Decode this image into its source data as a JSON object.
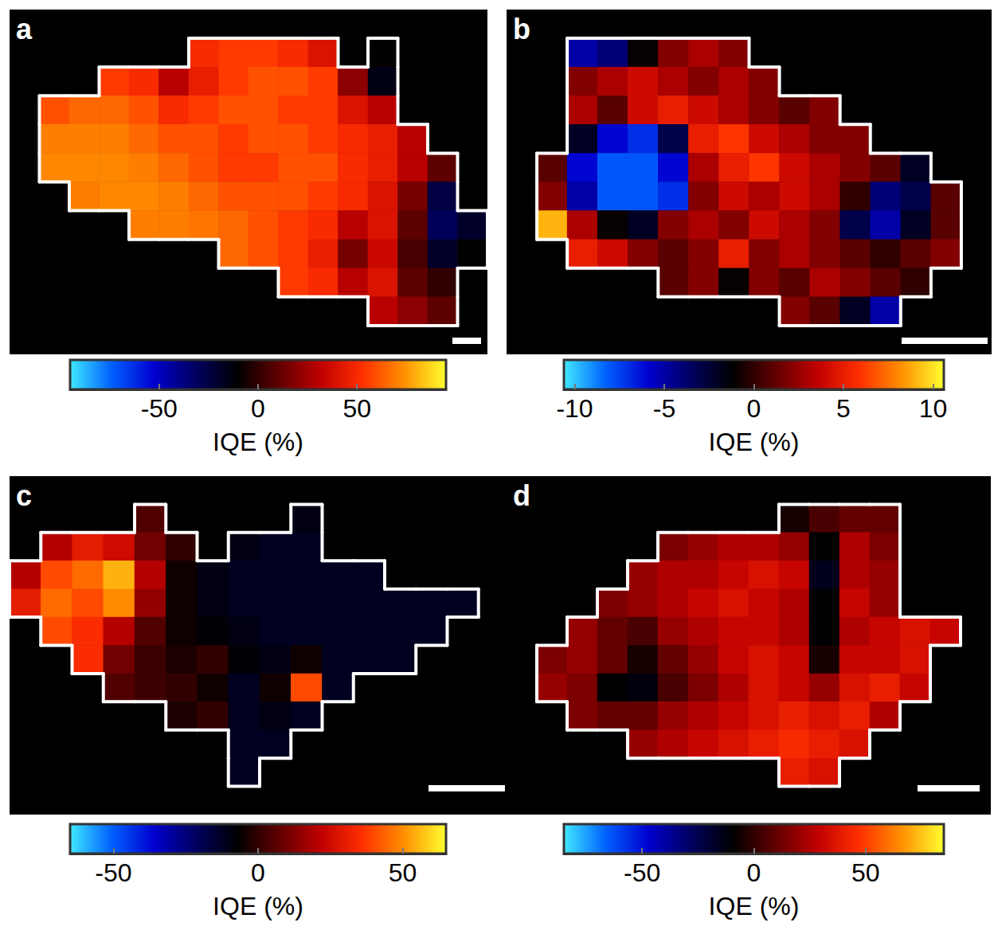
{
  "chart_data": [
    {
      "type": "heatmap",
      "title": "a",
      "tick_labels": false,
      "colorbar": {
        "label": "IQE (%)",
        "range": [
          -95,
          95
        ],
        "ticks": [
          -50,
          0,
          50
        ]
      },
      "values": [
        [
          null,
          null,
          null,
          null,
          null,
          null,
          null,
          null,
          null,
          null,
          null,
          null,
          null,
          null,
          null,
          null
        ],
        [
          null,
          null,
          null,
          null,
          null,
          null,
          50,
          55,
          55,
          50,
          40,
          null,
          -10,
          null,
          null,
          null
        ],
        [
          null,
          null,
          null,
          55,
          50,
          30,
          45,
          55,
          60,
          60,
          55,
          20,
          -15,
          null,
          null,
          null
        ],
        [
          null,
          60,
          65,
          65,
          60,
          50,
          55,
          60,
          60,
          55,
          55,
          40,
          30,
          null,
          null,
          null
        ],
        [
          null,
          70,
          70,
          70,
          65,
          60,
          60,
          55,
          60,
          60,
          55,
          50,
          45,
          30,
          null,
          null
        ],
        [
          null,
          72,
          72,
          72,
          70,
          65,
          60,
          55,
          55,
          60,
          60,
          50,
          45,
          30,
          10,
          null
        ],
        [
          null,
          null,
          70,
          72,
          72,
          70,
          65,
          60,
          60,
          60,
          55,
          50,
          40,
          15,
          -25,
          null
        ],
        [
          null,
          null,
          null,
          null,
          70,
          70,
          68,
          65,
          60,
          55,
          50,
          30,
          40,
          10,
          -30,
          -20
        ],
        [
          null,
          null,
          null,
          null,
          null,
          null,
          null,
          65,
          60,
          55,
          45,
          15,
          35,
          5,
          -20,
          -10
        ],
        [
          null,
          null,
          null,
          null,
          null,
          null,
          null,
          null,
          null,
          55,
          50,
          30,
          40,
          10,
          0,
          null
        ],
        [
          null,
          null,
          null,
          null,
          null,
          null,
          null,
          null,
          null,
          null,
          null,
          null,
          30,
          20,
          10,
          null
        ],
        [
          null,
          null,
          null,
          null,
          null,
          null,
          null,
          null,
          null,
          null,
          null,
          null,
          null,
          null,
          null,
          null
        ]
      ]
    },
    {
      "type": "heatmap",
      "title": "b",
      "tick_labels": false,
      "colorbar": {
        "label": "IQE (%)",
        "range": [
          -10.6,
          10.6
        ],
        "ticks": [
          -10,
          -5,
          0,
          5,
          10
        ]
      },
      "values": [
        [
          null,
          null,
          null,
          null,
          null,
          null,
          null,
          null,
          null,
          null,
          null,
          null,
          null,
          null,
          null,
          null
        ],
        [
          null,
          null,
          -5,
          -4,
          -1,
          2,
          3,
          2,
          null,
          null,
          null,
          null,
          null,
          null,
          null,
          null
        ],
        [
          null,
          null,
          2,
          3,
          4,
          3,
          2,
          3,
          2,
          null,
          null,
          null,
          null,
          null,
          null,
          null
        ],
        [
          null,
          null,
          3,
          1,
          4,
          5,
          4,
          3,
          2,
          1,
          2,
          null,
          null,
          null,
          null,
          null
        ],
        [
          null,
          null,
          -2,
          -6,
          -7,
          -3,
          5,
          6,
          4,
          3,
          2,
          2,
          null,
          null,
          null,
          null
        ],
        [
          null,
          1,
          -6,
          -8,
          -8,
          -6,
          3,
          5,
          6,
          4,
          3,
          2,
          1,
          -2,
          null,
          null
        ],
        [
          null,
          2,
          -5,
          -8,
          -8,
          -7,
          2,
          4,
          3,
          4,
          3,
          0,
          -4,
          -3,
          1,
          null
        ],
        [
          null,
          9,
          3,
          -1,
          -2,
          2,
          3,
          2,
          4,
          3,
          2,
          -3,
          -5,
          -2,
          1,
          null
        ],
        [
          null,
          null,
          5,
          4,
          2,
          1,
          2,
          5,
          2,
          3,
          2,
          1,
          0,
          1,
          2,
          null
        ],
        [
          null,
          null,
          null,
          null,
          null,
          1,
          2,
          -1,
          2,
          1,
          3,
          2,
          1,
          0,
          null,
          null
        ],
        [
          null,
          null,
          null,
          null,
          null,
          null,
          null,
          null,
          null,
          2,
          1,
          -2,
          -5,
          null,
          null,
          null
        ],
        [
          null,
          null,
          null,
          null,
          null,
          null,
          null,
          null,
          null,
          null,
          null,
          null,
          null,
          null,
          null,
          null
        ]
      ]
    },
    {
      "type": "heatmap",
      "title": "c",
      "tick_labels": false,
      "colorbar": {
        "label": "IQE (%)",
        "range": [
          -65,
          65
        ],
        "ticks": [
          -50,
          0,
          50
        ]
      },
      "values": [
        [
          null,
          null,
          null,
          null,
          null,
          null,
          null,
          null,
          null,
          null,
          null,
          null,
          null,
          null,
          null,
          null
        ],
        [
          null,
          null,
          null,
          null,
          5,
          null,
          null,
          null,
          null,
          -10,
          null,
          null,
          null,
          null,
          null,
          null
        ],
        [
          null,
          20,
          30,
          25,
          10,
          0,
          null,
          -10,
          -12,
          -12,
          null,
          null,
          null,
          null,
          null,
          null
        ],
        [
          20,
          40,
          45,
          55,
          20,
          -5,
          -10,
          -12,
          -12,
          -12,
          -12,
          -12,
          null,
          null,
          null,
          null
        ],
        [
          30,
          45,
          40,
          50,
          15,
          -5,
          -10,
          -12,
          -12,
          -12,
          -12,
          -12,
          -12,
          -12,
          -12,
          null
        ],
        [
          null,
          40,
          35,
          20,
          5,
          -5,
          -8,
          -10,
          -12,
          -12,
          -12,
          -12,
          -12,
          -12,
          null,
          null
        ],
        [
          null,
          null,
          35,
          10,
          2,
          -3,
          0,
          -8,
          -10,
          -5,
          -12,
          -12,
          -12,
          null,
          null,
          null
        ],
        [
          null,
          null,
          null,
          5,
          2,
          0,
          -5,
          -12,
          -5,
          40,
          -12,
          null,
          null,
          null,
          null,
          null
        ],
        [
          null,
          null,
          null,
          null,
          null,
          -3,
          0,
          -12,
          -10,
          -12,
          null,
          null,
          null,
          null,
          null,
          null
        ],
        [
          null,
          null,
          null,
          null,
          null,
          null,
          null,
          -12,
          -12,
          null,
          null,
          null,
          null,
          null,
          null,
          null
        ],
        [
          null,
          null,
          null,
          null,
          null,
          null,
          null,
          -12,
          null,
          null,
          null,
          null,
          null,
          null,
          null,
          null
        ],
        [
          null,
          null,
          null,
          null,
          null,
          null,
          null,
          null,
          null,
          null,
          null,
          null,
          null,
          null,
          null,
          null
        ]
      ]
    },
    {
      "type": "heatmap",
      "title": "d",
      "tick_labels": false,
      "colorbar": {
        "label": "IQE (%)",
        "range": [
          -85,
          85
        ],
        "ticks": [
          -50,
          0,
          50
        ]
      },
      "values": [
        [
          null,
          null,
          null,
          null,
          null,
          null,
          null,
          null,
          null,
          null,
          null,
          null,
          null,
          null,
          null,
          null
        ],
        [
          null,
          null,
          null,
          null,
          null,
          null,
          null,
          null,
          null,
          -5,
          5,
          10,
          10,
          null,
          null,
          null
        ],
        [
          null,
          null,
          null,
          null,
          null,
          15,
          20,
          25,
          25,
          20,
          -10,
          25,
          15,
          null,
          null,
          null
        ],
        [
          null,
          null,
          null,
          null,
          20,
          25,
          25,
          30,
          35,
          30,
          -15,
          25,
          20,
          null,
          null,
          null
        ],
        [
          null,
          null,
          null,
          15,
          20,
          25,
          30,
          35,
          30,
          25,
          -10,
          30,
          20,
          null,
          null,
          null
        ],
        [
          null,
          null,
          20,
          10,
          5,
          20,
          25,
          30,
          30,
          25,
          -10,
          25,
          30,
          35,
          30,
          null
        ],
        [
          null,
          15,
          20,
          10,
          -5,
          10,
          20,
          30,
          35,
          30,
          -5,
          30,
          30,
          35,
          null,
          null
        ],
        [
          null,
          20,
          15,
          -10,
          -12,
          5,
          15,
          25,
          35,
          30,
          20,
          35,
          40,
          30,
          null,
          null
        ],
        [
          null,
          null,
          15,
          10,
          10,
          20,
          25,
          30,
          35,
          40,
          35,
          40,
          25,
          null,
          null,
          null
        ],
        [
          null,
          null,
          null,
          null,
          20,
          25,
          30,
          35,
          40,
          45,
          40,
          35,
          null,
          null,
          null,
          null
        ],
        [
          null,
          null,
          null,
          null,
          null,
          null,
          null,
          null,
          null,
          40,
          35,
          null,
          null,
          null,
          null,
          null
        ],
        [
          null,
          null,
          null,
          null,
          null,
          null,
          null,
          null,
          null,
          null,
          null,
          null,
          null,
          null,
          null,
          null
        ]
      ]
    }
  ]
}
